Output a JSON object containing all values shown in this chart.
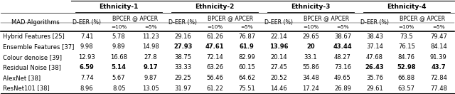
{
  "ethnicity_headers": [
    "Ethnicity-1",
    "Ethnicity-2",
    "Ethnicity-3",
    "Ethnicity-4"
  ],
  "rows": [
    {
      "algorithm": "Hybrid Features [25]",
      "values": [
        "7.41",
        "5.78",
        "11.23",
        "29.16",
        "61.26",
        "76.87",
        "22.14",
        "29.65",
        "38.67",
        "38.43",
        "73.5",
        "79.47"
      ],
      "bold": [
        false,
        false,
        false,
        false,
        false,
        false,
        false,
        false,
        false,
        false,
        false,
        false
      ]
    },
    {
      "algorithm": "Ensemble Features [37]",
      "values": [
        "9.98",
        "9.89",
        "14.98",
        "27.93",
        "47.61",
        "61.9",
        "13.96",
        "20",
        "43.44",
        "37.14",
        "76.15",
        "84.14"
      ],
      "bold": [
        false,
        false,
        false,
        true,
        true,
        true,
        true,
        true,
        true,
        false,
        false,
        false
      ]
    },
    {
      "algorithm": "Colour denoise [39]",
      "values": [
        "12.93",
        "16.68",
        "27.8",
        "38.75",
        "72.14",
        "82.99",
        "20.14",
        "33.1",
        "48.27",
        "47.68",
        "84.76",
        "91.39"
      ],
      "bold": [
        false,
        false,
        false,
        false,
        false,
        false,
        false,
        false,
        false,
        false,
        false,
        false
      ]
    },
    {
      "algorithm": "Residual Noise [38]",
      "values": [
        "6.59",
        "5.14",
        "9.17",
        "33.33",
        "63.26",
        "60.15",
        "27.45",
        "55.86",
        "73.16",
        "26.43",
        "52.98",
        "43.7"
      ],
      "bold": [
        true,
        true,
        true,
        false,
        false,
        false,
        false,
        false,
        false,
        true,
        true,
        true
      ]
    },
    {
      "algorithm": "AlexNet [38]",
      "values": [
        "7.74",
        "5.67",
        "9.87",
        "29.25",
        "56.46",
        "64.62",
        "20.52",
        "34.48",
        "49.65",
        "35.76",
        "66.88",
        "72.84"
      ],
      "bold": [
        false,
        false,
        false,
        false,
        false,
        false,
        false,
        false,
        false,
        false,
        false,
        false
      ]
    },
    {
      "algorithm": "ResNet101 [38]",
      "values": [
        "8.96",
        "8.05",
        "13.05",
        "31.97",
        "61.22",
        "75.51",
        "14.46",
        "17.24",
        "26.89",
        "29.61",
        "63.57",
        "77.48"
      ],
      "bold": [
        false,
        false,
        false,
        false,
        false,
        false,
        false,
        false,
        false,
        false,
        false,
        false
      ]
    }
  ],
  "background_color": "#ffffff",
  "font_size_header": 6.5,
  "font_size_subheader": 6.0,
  "font_size_data": 6.0
}
